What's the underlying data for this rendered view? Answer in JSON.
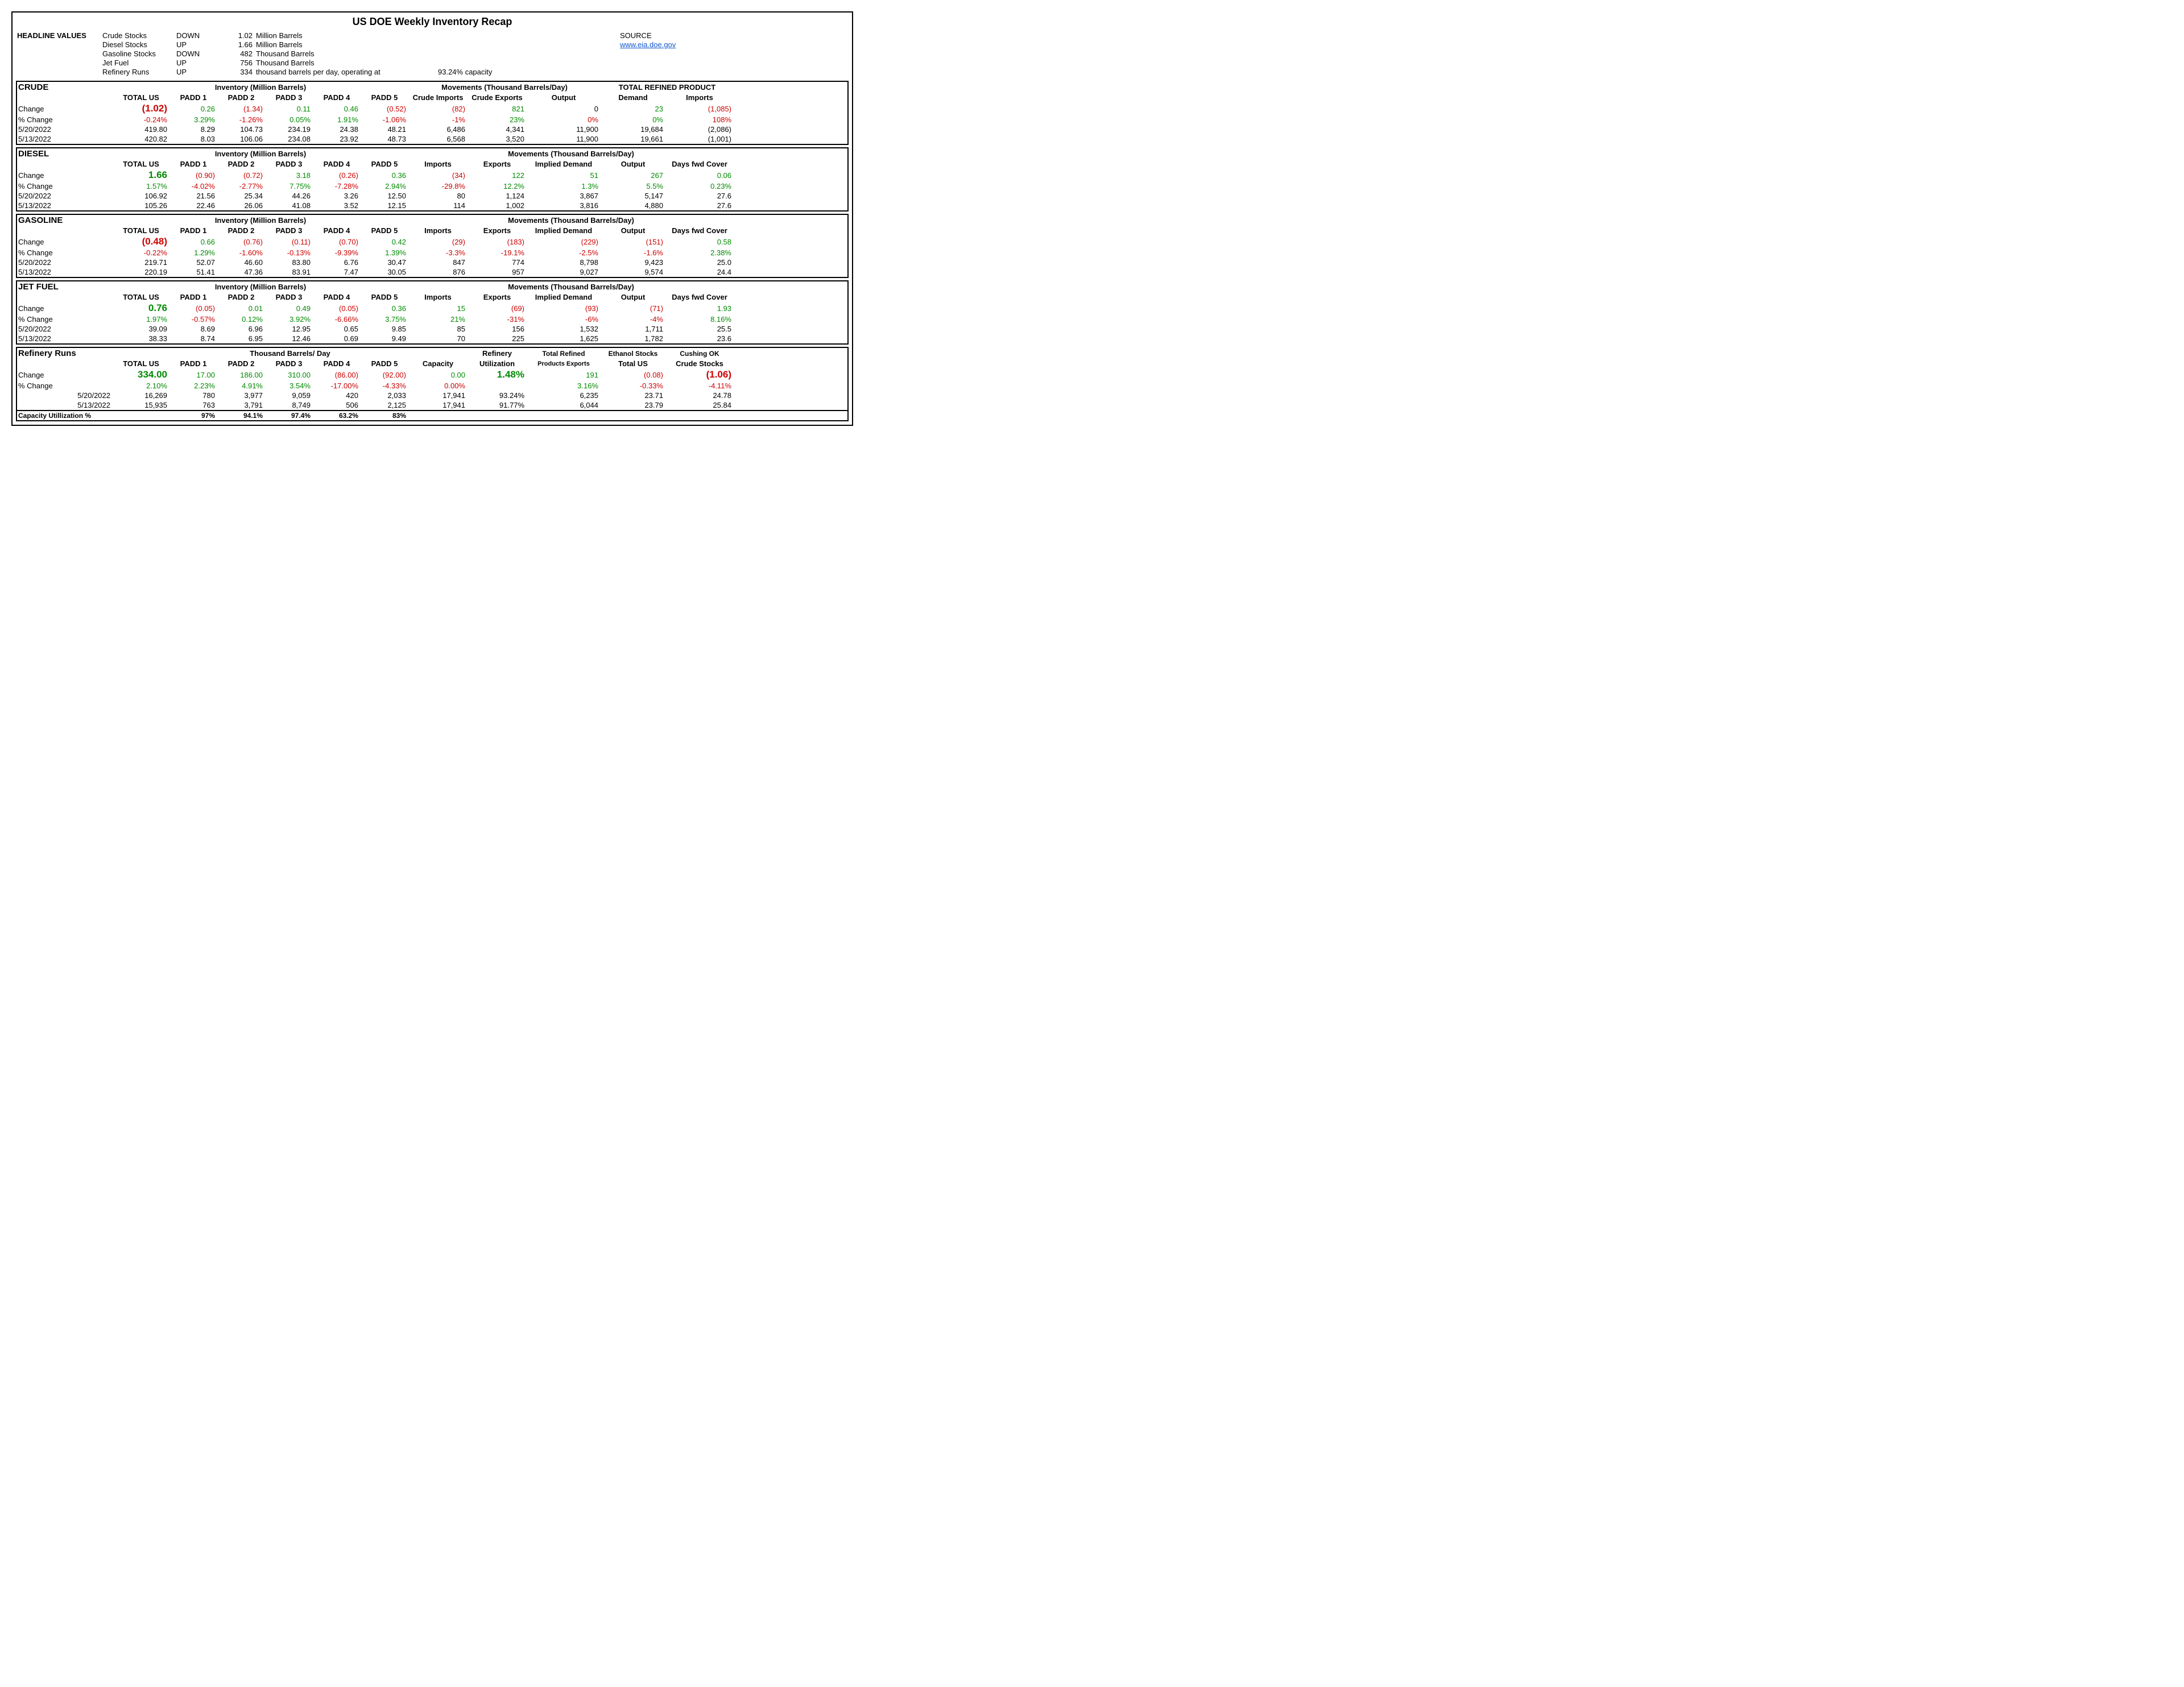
{
  "title": "US DOE Weekly Inventory Recap",
  "source_label": "SOURCE",
  "source_link": "www.eia.doe.gov",
  "headline_label": "HEADLINE VALUES",
  "headline": [
    {
      "name": "Crude Stocks",
      "dir": "DOWN",
      "val": "1.02",
      "unit": "Million Barrels",
      "extra": ""
    },
    {
      "name": "Diesel Stocks",
      "dir": "UP",
      "val": "1.66",
      "unit": "Million Barrels",
      "extra": ""
    },
    {
      "name": "Gasoline Stocks",
      "dir": "DOWN",
      "val": "482",
      "unit": "Thousand Barrels",
      "extra": ""
    },
    {
      "name": "Jet Fuel",
      "dir": "UP",
      "val": "756",
      "unit": "Thousand Barrels",
      "extra": ""
    },
    {
      "name": "Refinery Runs",
      "dir": "UP",
      "val": "334",
      "unit": "thousand barrels per day, operating at",
      "extra": "93.24% capacity"
    }
  ],
  "col_headers_common": {
    "total": "TOTAL US",
    "p1": "PADD 1",
    "p2": "PADD 2",
    "p3": "PADD 3",
    "p4": "PADD 4",
    "p5": "PADD 5"
  },
  "row_labels": {
    "change": "Change",
    "pct": "% Change",
    "d1": "5/20/2022",
    "d2": "5/13/2022",
    "cap": "Capacity Utillization %"
  },
  "crude": {
    "name": "CRUDE",
    "span_left": "Inventory (Million Barrels)",
    "span_mid": "Movements (Thousand Barrels/Day)",
    "span_right": "TOTAL REFINED PRODUCT",
    "mid_cols": [
      "Crude Imports",
      "Crude Exports",
      "Output"
    ],
    "right_cols": [
      "Demand",
      "Imports"
    ],
    "change": {
      "total": "(1.02)",
      "p1": "0.26",
      "p2": "(1.34)",
      "p3": "0.11",
      "p4": "0.46",
      "p5": "(0.52)",
      "m1": "(82)",
      "m2": "821",
      "m3": "0",
      "r1": "23",
      "r2": "(1,085)"
    },
    "change_c": {
      "total": "neg big",
      "p1": "pos",
      "p2": "neg",
      "p3": "pos",
      "p4": "pos",
      "p5": "neg",
      "m1": "neg",
      "m2": "pos",
      "m3": "",
      "r1": "pos",
      "r2": "neg"
    },
    "pct": {
      "total": "-0.24%",
      "p1": "3.29%",
      "p2": "-1.26%",
      "p3": "0.05%",
      "p4": "1.91%",
      "p5": "-1.06%",
      "m1": "-1%",
      "m2": "23%",
      "m3": "0%",
      "r1": "0%",
      "r2": "108%"
    },
    "pct_c": {
      "total": "neg",
      "p1": "pos",
      "p2": "neg",
      "p3": "pos",
      "p4": "pos",
      "p5": "neg",
      "m1": "neg",
      "m2": "pos",
      "m3": "neg",
      "r1": "pos",
      "r2": "neg"
    },
    "d1": {
      "total": "419.80",
      "p1": "8.29",
      "p2": "104.73",
      "p3": "234.19",
      "p4": "24.38",
      "p5": "48.21",
      "m1": "6,486",
      "m2": "4,341",
      "m3": "11,900",
      "r1": "19,684",
      "r2": "(2,086)"
    },
    "d2": {
      "total": "420.82",
      "p1": "8.03",
      "p2": "106.06",
      "p3": "234.08",
      "p4": "23.92",
      "p5": "48.73",
      "m1": "6,568",
      "m2": "3,520",
      "m3": "11,900",
      "r1": "19,661",
      "r2": "(1,001)"
    }
  },
  "diesel": {
    "name": "DIESEL",
    "span_left": "Inventory (Million Barrels)",
    "span_mid": "Movements (Thousand Barrels/Day)",
    "mid_cols": [
      "Imports",
      "Exports",
      "Implied Demand",
      "Output",
      "Days fwd Cover"
    ],
    "change": {
      "total": "1.66",
      "p1": "(0.90)",
      "p2": "(0.72)",
      "p3": "3.18",
      "p4": "(0.26)",
      "p5": "0.36",
      "m1": "(34)",
      "m2": "122",
      "m3": "51",
      "m4": "267",
      "m5": "0.06"
    },
    "change_c": {
      "total": "pos big",
      "p1": "neg",
      "p2": "neg",
      "p3": "pos",
      "p4": "neg",
      "p5": "pos",
      "m1": "neg",
      "m2": "pos",
      "m3": "pos",
      "m4": "pos",
      "m5": "pos"
    },
    "pct": {
      "total": "1.57%",
      "p1": "-4.02%",
      "p2": "-2.77%",
      "p3": "7.75%",
      "p4": "-7.28%",
      "p5": "2.94%",
      "m1": "-29.8%",
      "m2": "12.2%",
      "m3": "1.3%",
      "m4": "5.5%",
      "m5": "0.23%"
    },
    "pct_c": {
      "total": "pos",
      "p1": "neg",
      "p2": "neg",
      "p3": "pos",
      "p4": "neg",
      "p5": "pos",
      "m1": "neg",
      "m2": "pos",
      "m3": "pos",
      "m4": "pos",
      "m5": "pos"
    },
    "d1": {
      "total": "106.92",
      "p1": "21.56",
      "p2": "25.34",
      "p3": "44.26",
      "p4": "3.26",
      "p5": "12.50",
      "m1": "80",
      "m2": "1,124",
      "m3": "3,867",
      "m4": "5,147",
      "m5": "27.6"
    },
    "d2": {
      "total": "105.26",
      "p1": "22.46",
      "p2": "26.06",
      "p3": "41.08",
      "p4": "3.52",
      "p5": "12.15",
      "m1": "114",
      "m2": "1,002",
      "m3": "3,816",
      "m4": "4,880",
      "m5": "27.6"
    }
  },
  "gasoline": {
    "name": "GASOLINE",
    "span_left": "Inventory (Million Barrels)",
    "span_mid": "Movements (Thousand Barrels/Day)",
    "mid_cols": [
      "Imports",
      "Exports",
      "Implied Demand",
      "Output",
      "Days fwd Cover"
    ],
    "change": {
      "total": "(0.48)",
      "p1": "0.66",
      "p2": "(0.76)",
      "p3": "(0.11)",
      "p4": "(0.70)",
      "p5": "0.42",
      "m1": "(29)",
      "m2": "(183)",
      "m3": "(229)",
      "m4": "(151)",
      "m5": "0.58"
    },
    "change_c": {
      "total": "neg big",
      "p1": "pos",
      "p2": "neg",
      "p3": "neg",
      "p4": "neg",
      "p5": "pos",
      "m1": "neg",
      "m2": "neg",
      "m3": "neg",
      "m4": "neg",
      "m5": "pos"
    },
    "pct": {
      "total": "-0.22%",
      "p1": "1.29%",
      "p2": "-1.60%",
      "p3": "-0.13%",
      "p4": "-9.39%",
      "p5": "1.39%",
      "m1": "-3.3%",
      "m2": "-19.1%",
      "m3": "-2.5%",
      "m4": "-1.6%",
      "m5": "2.38%"
    },
    "pct_c": {
      "total": "neg",
      "p1": "pos",
      "p2": "neg",
      "p3": "neg",
      "p4": "neg",
      "p5": "pos",
      "m1": "neg",
      "m2": "neg",
      "m3": "neg",
      "m4": "neg",
      "m5": "pos"
    },
    "d1": {
      "total": "219.71",
      "p1": "52.07",
      "p2": "46.60",
      "p3": "83.80",
      "p4": "6.76",
      "p5": "30.47",
      "m1": "847",
      "m2": "774",
      "m3": "8,798",
      "m4": "9,423",
      "m5": "25.0"
    },
    "d2": {
      "total": "220.19",
      "p1": "51.41",
      "p2": "47.36",
      "p3": "83.91",
      "p4": "7.47",
      "p5": "30.05",
      "m1": "876",
      "m2": "957",
      "m3": "9,027",
      "m4": "9,574",
      "m5": "24.4"
    }
  },
  "jetfuel": {
    "name": "JET FUEL",
    "span_left": "Inventory (Million Barrels)",
    "span_mid": "Movements (Thousand Barrels/Day)",
    "mid_cols": [
      "Imports",
      "Exports",
      "Implied Demand",
      "Output",
      "Days fwd Cover"
    ],
    "change": {
      "total": "0.76",
      "p1": "(0.05)",
      "p2": "0.01",
      "p3": "0.49",
      "p4": "(0.05)",
      "p5": "0.36",
      "m1": "15",
      "m2": "(69)",
      "m3": "(93)",
      "m4": "(71)",
      "m5": "1.93"
    },
    "change_c": {
      "total": "pos big",
      "p1": "neg",
      "p2": "pos",
      "p3": "pos",
      "p4": "neg",
      "p5": "pos",
      "m1": "pos",
      "m2": "neg",
      "m3": "neg",
      "m4": "neg",
      "m5": "pos"
    },
    "pct": {
      "total": "1.97%",
      "p1": "-0.57%",
      "p2": "0.12%",
      "p3": "3.92%",
      "p4": "-6.66%",
      "p5": "3.75%",
      "m1": "21%",
      "m2": "-31%",
      "m3": "-6%",
      "m4": "-4%",
      "m5": "8.16%"
    },
    "pct_c": {
      "total": "pos",
      "p1": "neg",
      "p2": "pos",
      "p3": "pos",
      "p4": "neg",
      "p5": "pos",
      "m1": "pos",
      "m2": "neg",
      "m3": "neg",
      "m4": "neg",
      "m5": "pos"
    },
    "d1": {
      "total": "39.09",
      "p1": "8.69",
      "p2": "6.96",
      "p3": "12.95",
      "p4": "0.65",
      "p5": "9.85",
      "m1": "85",
      "m2": "156",
      "m3": "1,532",
      "m4": "1,711",
      "m5": "25.5"
    },
    "d2": {
      "total": "38.33",
      "p1": "8.74",
      "p2": "6.95",
      "p3": "12.46",
      "p4": "0.69",
      "p5": "9.49",
      "m1": "70",
      "m2": "225",
      "m3": "1,625",
      "m4": "1,782",
      "m5": "23.6"
    }
  },
  "refinery": {
    "name": "Refinery Runs",
    "span_left": "Thousand Barrels/ Day",
    "extra_top": {
      "ref_util": "Refinery",
      "trpe": "Total Refined",
      "eth": "Ethanol Stocks",
      "cush": "Cushing OK"
    },
    "cols_right": {
      "cap": "Capacity",
      "util": "Utilization",
      "trpe": "Products Exports",
      "eth": "Total US",
      "cush": "Crude Stocks"
    },
    "change": {
      "total": "334.00",
      "p1": "17.00",
      "p2": "186.00",
      "p3": "310.00",
      "p4": "(86.00)",
      "p5": "(92.00)",
      "cap": "0.00",
      "util": "1.48%",
      "trpe": "191",
      "eth": "(0.08)",
      "cush": "(1.06)"
    },
    "change_c": {
      "total": "pos big",
      "p1": "pos",
      "p2": "pos",
      "p3": "pos",
      "p4": "neg",
      "p5": "neg",
      "cap": "pos",
      "util": "pos big",
      "trpe": "pos",
      "eth": "neg",
      "cush": "neg big"
    },
    "pct": {
      "total": "2.10%",
      "p1": "2.23%",
      "p2": "4.91%",
      "p3": "3.54%",
      "p4": "-17.00%",
      "p5": "-4.33%",
      "cap": "0.00%",
      "util": "",
      "trpe": "3.16%",
      "eth": "-0.33%",
      "cush": "-4.11%"
    },
    "pct_c": {
      "total": "pos",
      "p1": "pos",
      "p2": "pos",
      "p3": "pos",
      "p4": "neg",
      "p5": "neg",
      "cap": "neg",
      "util": "",
      "trpe": "pos",
      "eth": "neg",
      "cush": "neg"
    },
    "d1": {
      "total": "16,269",
      "p1": "780",
      "p2": "3,977",
      "p3": "9,059",
      "p4": "420",
      "p5": "2,033",
      "cap": "17,941",
      "util": "93.24%",
      "trpe": "6,235",
      "eth": "23.71",
      "cush": "24.78"
    },
    "d2": {
      "total": "15,935",
      "p1": "763",
      "p2": "3,791",
      "p3": "8,749",
      "p4": "506",
      "p5": "2,125",
      "cap": "17,941",
      "util": "91.77%",
      "trpe": "6,044",
      "eth": "23.79",
      "cush": "25.84"
    },
    "caputil": {
      "p1": "97%",
      "p2": "94.1%",
      "p3": "97.4%",
      "p4": "63.2%",
      "p5": "83%"
    }
  }
}
